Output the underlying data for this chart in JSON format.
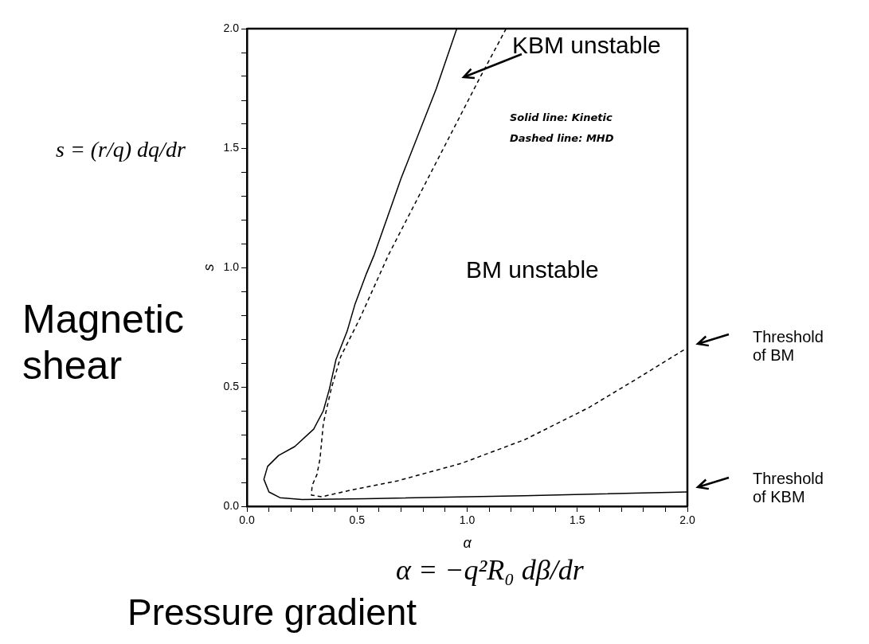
{
  "chart_data": {
    "type": "line",
    "xlabel": "α",
    "ylabel": "s",
    "xlim": [
      0,
      2
    ],
    "ylim": [
      0,
      2
    ],
    "xticks": [
      {
        "value": 0,
        "label": "0.0"
      },
      {
        "value": 0.1,
        "label": null
      },
      {
        "value": 0.2,
        "label": null
      },
      {
        "value": 0.3,
        "label": null
      },
      {
        "value": 0.4,
        "label": null
      },
      {
        "value": 0.5,
        "label": "0.5"
      },
      {
        "value": 0.6,
        "label": null
      },
      {
        "value": 0.7,
        "label": null
      },
      {
        "value": 0.8,
        "label": null
      },
      {
        "value": 0.9,
        "label": null
      },
      {
        "value": 1,
        "label": "1.0"
      },
      {
        "value": 1.1,
        "label": null
      },
      {
        "value": 1.2,
        "label": null
      },
      {
        "value": 1.3,
        "label": null
      },
      {
        "value": 1.4,
        "label": null
      },
      {
        "value": 1.5,
        "label": "1.5"
      },
      {
        "value": 1.6,
        "label": null
      },
      {
        "value": 1.7,
        "label": null
      },
      {
        "value": 1.8,
        "label": null
      },
      {
        "value": 1.9,
        "label": null
      },
      {
        "value": 2,
        "label": "2.0"
      }
    ],
    "yticks": [
      {
        "value": 0,
        "label": "0.0"
      },
      {
        "value": 0.1,
        "label": null
      },
      {
        "value": 0.2,
        "label": null
      },
      {
        "value": 0.3,
        "label": null
      },
      {
        "value": 0.4,
        "label": null
      },
      {
        "value": 0.5,
        "label": "0.5"
      },
      {
        "value": 0.6,
        "label": null
      },
      {
        "value": 0.7,
        "label": null
      },
      {
        "value": 0.8,
        "label": null
      },
      {
        "value": 0.9,
        "label": null
      },
      {
        "value": 1,
        "label": "1.0"
      },
      {
        "value": 1.1,
        "label": null
      },
      {
        "value": 1.2,
        "label": null
      },
      {
        "value": 1.3,
        "label": null
      },
      {
        "value": 1.4,
        "label": null
      },
      {
        "value": 1.5,
        "label": "1.5"
      },
      {
        "value": 1.6,
        "label": null
      },
      {
        "value": 1.7,
        "label": null
      },
      {
        "value": 1.8,
        "label": null
      },
      {
        "value": 1.9,
        "label": null
      },
      {
        "value": 2,
        "label": "2.0"
      }
    ],
    "grid": false,
    "marker": "none",
    "series": [
      {
        "color": "#000000",
        "line_style": "solid",
        "x": [
          2.0,
          1.26,
          0.54,
          0.25,
          0.15,
          0.1,
          0.077,
          0.094,
          0.144,
          0.217,
          0.303,
          0.347,
          0.375,
          0.404,
          0.455,
          0.491,
          0.542,
          0.578,
          0.7,
          0.859,
          0.953
        ],
        "values": [
          0.06,
          0.044,
          0.032,
          0.028,
          0.036,
          0.06,
          0.113,
          0.167,
          0.213,
          0.25,
          0.323,
          0.4,
          0.493,
          0.613,
          0.733,
          0.847,
          0.973,
          1.053,
          1.373,
          1.747,
          2.0
        ]
      },
      {
        "color": "#000000",
        "line_style": "dashed",
        "x": [
          1.177,
          1.061,
          0.643,
          0.513,
          0.426,
          0.383,
          0.347,
          0.332,
          0.318,
          0.296,
          0.293,
          0.34,
          0.469,
          0.686,
          0.975,
          1.264,
          1.552,
          1.769,
          1.993
        ],
        "values": [
          2.0,
          1.8,
          1.053,
          0.787,
          0.627,
          0.493,
          0.347,
          0.2,
          0.133,
          0.087,
          0.047,
          0.04,
          0.067,
          0.107,
          0.18,
          0.28,
          0.413,
          0.533,
          0.66
        ]
      }
    ],
    "annotations": [
      "KBM unstable",
      "BM unstable",
      "Solid line: Kinetic",
      "Dashed line: MHD",
      "Threshold of BM",
      "Threshold of KBM",
      "Magnetic shear",
      "s = (r/q) dq/dr",
      "Pressure gradient",
      "α = −q²R₀ dβ/dr"
    ]
  }
}
